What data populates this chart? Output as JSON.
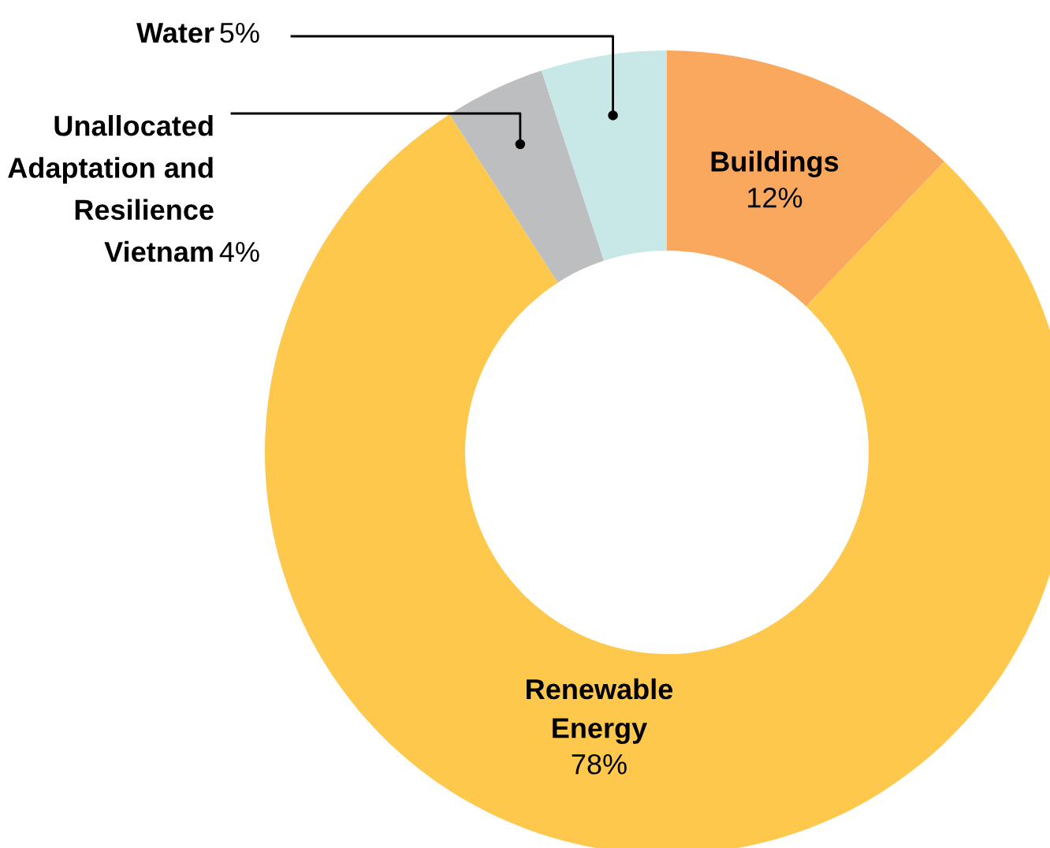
{
  "chart_data": {
    "type": "donut",
    "categories": [
      "Buildings",
      "Renewable\nEnergy",
      "Unallocated\nAdaptation and\nResilience\nVietnam",
      "Water"
    ],
    "values": [
      12,
      78,
      4,
      5
    ],
    "colors": [
      "#f9a85e",
      "#fec84d",
      "#bdbebf",
      "#c7e8e6"
    ],
    "value_labels": [
      "12%",
      "78%",
      "4%",
      "5%"
    ],
    "legend": false
  }
}
